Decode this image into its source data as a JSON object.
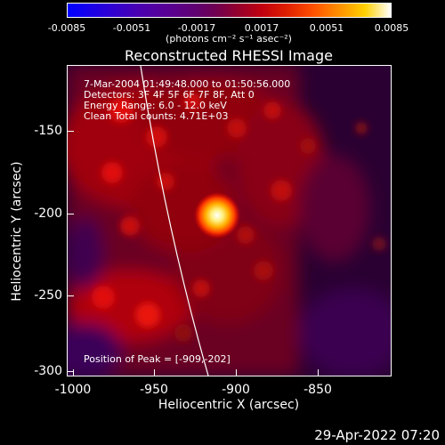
{
  "colorbar": {
    "ticks": [
      "-0.0085",
      "-0.0051",
      "-0.0017",
      "0.0017",
      "0.0051",
      "0.0085"
    ],
    "units": "(photons cm⁻² s⁻¹ asec⁻²)",
    "colors": [
      "#0000ff",
      "#600070",
      "#c00010",
      "#ff9000",
      "#ffffff"
    ]
  },
  "title": "Reconstructed RHESSI Image",
  "info": {
    "time_range": "7-Mar-2004 01:49:48.000 to 01:50:56.000",
    "detectors": "Detectors: 3F 4F 5F 6F 7F 8F, Att 0",
    "energy": "Energy Range: 6.0 - 12.0 keV",
    "clean": "Clean    Total counts: 4.71E+03"
  },
  "peak_label": "Position of Peak = [-909,-202]",
  "axes": {
    "ylabel": "Heliocentric Y (arcsec)",
    "xlabel": "Heliocentric X (arcsec)",
    "yticks": [
      "-150",
      "-200",
      "-250",
      "-300"
    ],
    "xticks": [
      "-1000",
      "-950",
      "-900",
      "-850"
    ]
  },
  "datestamp": "29-Apr-2022 07:20"
}
